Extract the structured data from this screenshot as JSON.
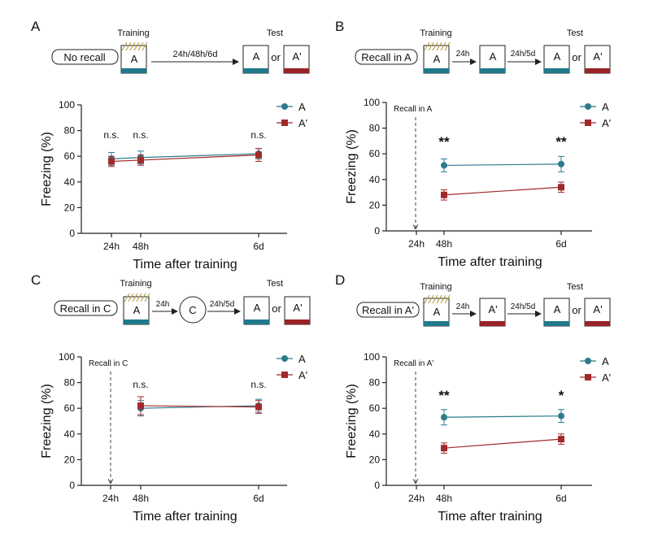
{
  "colors": {
    "A": "#2d7b8c",
    "Aprime": "#a02a2a",
    "axis": "#222222",
    "teal_bar": "#1f7a8c",
    "red_bar": "#9b2226",
    "hatch": "#b8a14a"
  },
  "panels": [
    {
      "letter": "A",
      "schematic": {
        "pill": "No recall",
        "training_label": "Training",
        "test_label": "Test",
        "boxes": [
          {
            "label": "A",
            "bar": "teal",
            "role": "training"
          },
          {
            "label": "A",
            "bar": "teal",
            "role": "test"
          },
          {
            "label": "A'",
            "bar": "red",
            "role": "test"
          }
        ],
        "arrows": [
          "24h/48h/6d"
        ],
        "or_label": "or"
      },
      "recall_label": "",
      "significance": [
        "n.s.",
        "n.s.",
        "n.s."
      ]
    },
    {
      "letter": "B",
      "schematic": {
        "pill": "Recall in A",
        "training_label": "Training",
        "test_label": "Test",
        "boxes": [
          {
            "label": "A",
            "bar": "teal",
            "role": "training"
          },
          {
            "label": "A",
            "bar": "teal",
            "role": "recall"
          },
          {
            "label": "A",
            "bar": "teal",
            "role": "test"
          },
          {
            "label": "A'",
            "bar": "red",
            "role": "test"
          }
        ],
        "arrows": [
          "24h",
          "24h/5d"
        ],
        "or_label": "or"
      },
      "recall_label": "Recall in A",
      "significance": [
        "**",
        "**"
      ]
    },
    {
      "letter": "C",
      "schematic": {
        "pill": "Recall in C",
        "training_label": "Training",
        "test_label": "Test",
        "boxes": [
          {
            "label": "A",
            "bar": "teal",
            "role": "training"
          },
          {
            "label": "C",
            "bar": "none",
            "role": "recall-circle"
          },
          {
            "label": "A",
            "bar": "teal",
            "role": "test"
          },
          {
            "label": "A'",
            "bar": "red",
            "role": "test"
          }
        ],
        "arrows": [
          "24h",
          "24h/5d"
        ],
        "or_label": "or"
      },
      "recall_label": "Recall in C",
      "significance": [
        "n.s.",
        "n.s."
      ]
    },
    {
      "letter": "D",
      "schematic": {
        "pill": "Recall in A'",
        "training_label": "Training",
        "test_label": "Test",
        "boxes": [
          {
            "label": "A",
            "bar": "teal",
            "role": "training"
          },
          {
            "label": "A'",
            "bar": "red",
            "role": "recall"
          },
          {
            "label": "A",
            "bar": "teal",
            "role": "test"
          },
          {
            "label": "A'",
            "bar": "red",
            "role": "test"
          }
        ],
        "arrows": [
          "24h",
          "24h/5d"
        ],
        "or_label": "or"
      },
      "recall_label": "Recall in A'",
      "significance": [
        "**",
        "*"
      ]
    }
  ],
  "chart_data": [
    {
      "panel": "A",
      "type": "line",
      "xlabel": "Time after training",
      "ylabel": "Freezing (%)",
      "ylim": [
        0,
        100
      ],
      "yticks": [
        0,
        20,
        40,
        60,
        80,
        100
      ],
      "xticks": [
        "24h",
        "48h",
        "6d"
      ],
      "series": [
        {
          "name": "A",
          "x": [
            "24h",
            "48h",
            "6d"
          ],
          "values": [
            58,
            59,
            62
          ],
          "err": [
            5,
            5,
            4
          ]
        },
        {
          "name": "A'",
          "x": [
            "24h",
            "48h",
            "6d"
          ],
          "values": [
            56,
            57,
            61
          ],
          "err": [
            4,
            4,
            5
          ]
        }
      ]
    },
    {
      "panel": "B",
      "type": "line",
      "xlabel": "Time after training",
      "ylabel": "Freezing (%)",
      "ylim": [
        0,
        100
      ],
      "yticks": [
        0,
        20,
        40,
        60,
        80,
        100
      ],
      "xticks": [
        "24h",
        "48h",
        "6d"
      ],
      "series": [
        {
          "name": "A",
          "x": [
            "48h",
            "6d"
          ],
          "values": [
            51,
            52
          ],
          "err": [
            5,
            6
          ]
        },
        {
          "name": "A'",
          "x": [
            "48h",
            "6d"
          ],
          "values": [
            28,
            34
          ],
          "err": [
            4,
            4
          ]
        }
      ]
    },
    {
      "panel": "C",
      "type": "line",
      "xlabel": "Time after training",
      "ylabel": "Freezing (%)",
      "ylim": [
        0,
        100
      ],
      "yticks": [
        0,
        20,
        40,
        60,
        80,
        100
      ],
      "xticks": [
        "24h",
        "48h",
        "6d"
      ],
      "series": [
        {
          "name": "A",
          "x": [
            "48h",
            "6d"
          ],
          "values": [
            60,
            62
          ],
          "err": [
            6,
            5
          ]
        },
        {
          "name": "A'",
          "x": [
            "48h",
            "6d"
          ],
          "values": [
            62,
            61
          ],
          "err": [
            7,
            5
          ]
        }
      ]
    },
    {
      "panel": "D",
      "type": "line",
      "xlabel": "Time after training",
      "ylabel": "Freezing (%)",
      "ylim": [
        0,
        100
      ],
      "yticks": [
        0,
        20,
        40,
        60,
        80,
        100
      ],
      "xticks": [
        "24h",
        "48h",
        "6d"
      ],
      "series": [
        {
          "name": "A",
          "x": [
            "48h",
            "6d"
          ],
          "values": [
            53,
            54
          ],
          "err": [
            6,
            5
          ]
        },
        {
          "name": "A'",
          "x": [
            "48h",
            "6d"
          ],
          "values": [
            29,
            36
          ],
          "err": [
            4,
            4
          ]
        }
      ]
    }
  ]
}
